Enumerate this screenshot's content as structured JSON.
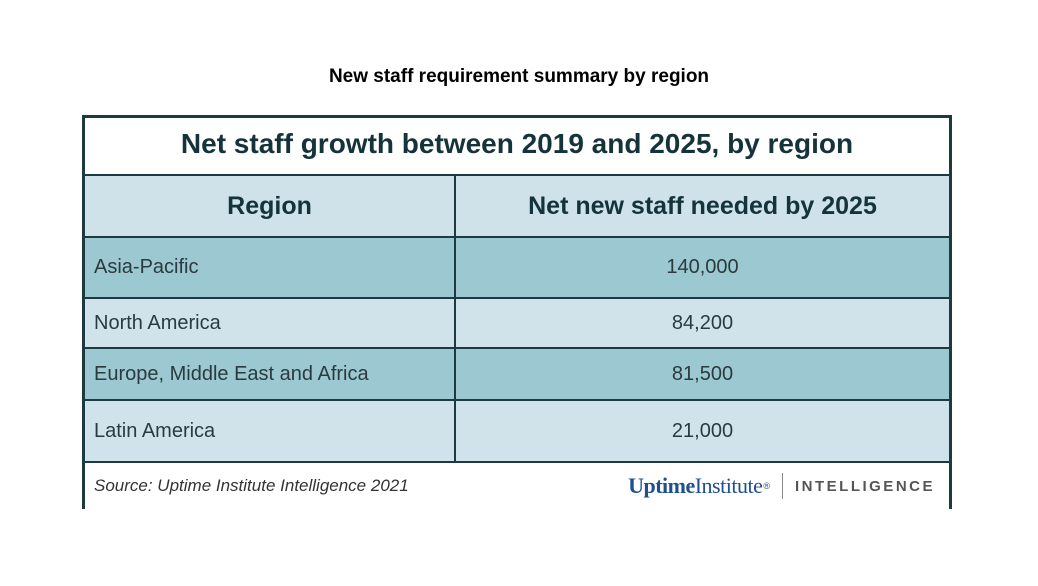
{
  "outer_title": "New staff requirement summary by region",
  "table": {
    "title": "Net staff growth between 2019 and 2025, by region",
    "headers": [
      "Region",
      "Net new staff needed by 2025"
    ],
    "rows": [
      {
        "region": "Asia-Pacific",
        "value": "140,000"
      },
      {
        "region": "North America",
        "value": "84,200"
      },
      {
        "region": "Europe, Middle East and Africa",
        "value": "81,500"
      },
      {
        "region": "Latin America",
        "value": "21,000"
      }
    ],
    "source": "Source: Uptime Institute Intelligence 2021",
    "brand": {
      "uptime": "Uptime",
      "institute": "Institute",
      "reg": "®",
      "intelligence": "INTELLIGENCE"
    }
  },
  "colors": {
    "border": "#1d3a40",
    "header_bg": "#cfe2ea",
    "row_dark": "#9bc8d1",
    "row_light": "#d0e3eb",
    "brand_blue": "#1f4f8f"
  },
  "chart_data": {
    "type": "table",
    "title": "Net staff growth between 2019 and 2025, by region",
    "subtitle": "New staff requirement summary by region",
    "columns": [
      "Region",
      "Net new staff needed by 2025"
    ],
    "categories": [
      "Asia-Pacific",
      "North America",
      "Europe, Middle East and Africa",
      "Latin America"
    ],
    "values": [
      140000,
      84200,
      81500,
      21000
    ],
    "source": "Source: Uptime Institute Intelligence 2021"
  }
}
